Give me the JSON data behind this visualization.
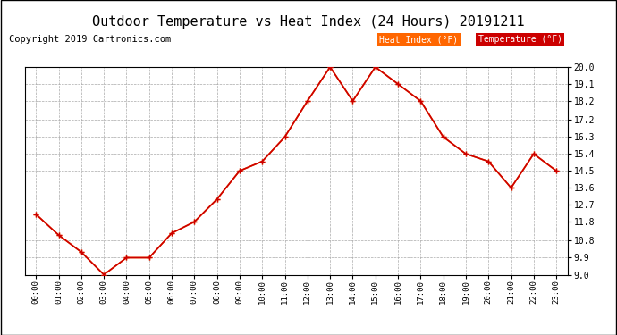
{
  "title": "Outdoor Temperature vs Heat Index (24 Hours) 20191211",
  "copyright": "Copyright 2019 Cartronics.com",
  "hours": [
    "00:00",
    "01:00",
    "02:00",
    "03:00",
    "04:00",
    "05:00",
    "06:00",
    "07:00",
    "08:00",
    "09:00",
    "10:00",
    "11:00",
    "12:00",
    "13:00",
    "14:00",
    "15:00",
    "16:00",
    "17:00",
    "18:00",
    "19:00",
    "20:00",
    "21:00",
    "22:00",
    "23:00"
  ],
  "temperature": [
    12.2,
    11.1,
    10.2,
    9.0,
    9.9,
    9.9,
    11.2,
    11.8,
    13.0,
    14.5,
    15.0,
    16.3,
    18.2,
    20.0,
    18.2,
    20.0,
    19.1,
    18.2,
    16.3,
    15.4,
    15.0,
    13.6,
    15.4,
    14.5
  ],
  "heat_index": [
    12.2,
    11.1,
    10.2,
    9.0,
    9.9,
    9.9,
    11.2,
    11.8,
    13.0,
    14.5,
    15.0,
    16.3,
    18.2,
    20.0,
    18.2,
    20.0,
    19.1,
    18.2,
    16.3,
    15.4,
    15.0,
    13.6,
    15.4,
    14.5
  ],
  "ylim": [
    9.0,
    20.0
  ],
  "yticks": [
    9.0,
    9.9,
    10.8,
    11.8,
    12.7,
    13.6,
    14.5,
    15.4,
    16.3,
    17.2,
    18.2,
    19.1,
    20.0
  ],
  "heat_index_color": "#FF6600",
  "temperature_color": "#CC0000",
  "background_color": "#ffffff",
  "grid_color": "#aaaaaa",
  "title_fontsize": 11,
  "copyright_fontsize": 7.5
}
